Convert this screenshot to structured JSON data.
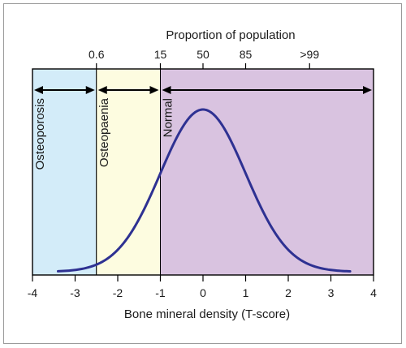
{
  "chart_data": {
    "type": "area",
    "xlabel": "Bone mineral density (T-score)",
    "top_axis_label": "Proportion of population",
    "xlim": [
      -4,
      4
    ],
    "x_ticks": [
      -4,
      -3,
      -2,
      -1,
      0,
      1,
      2,
      3,
      4
    ],
    "top_ticks": [
      {
        "label": "0.6",
        "x": -2.5
      },
      {
        "label": "15",
        "x": -1
      },
      {
        "label": "50",
        "x": 0
      },
      {
        "label": "85",
        "x": 1
      },
      {
        "label": ">99",
        "x": 2.5
      }
    ],
    "regions": [
      {
        "name": "Osteoporosis",
        "x_from": -4,
        "x_to": -2.5,
        "color": "#d3ecf9"
      },
      {
        "name": "Osteopaenia",
        "x_from": -2.5,
        "x_to": -1,
        "color": "#fdfce0"
      },
      {
        "name": "Normal",
        "x_from": -1,
        "x_to": 4,
        "color": "#d9c3e0"
      }
    ],
    "curve": {
      "distribution": "normal",
      "mean": 0,
      "sd": 1,
      "x_range": [
        -3.4,
        3.45
      ],
      "color": "#2e3192"
    },
    "grid": false
  }
}
